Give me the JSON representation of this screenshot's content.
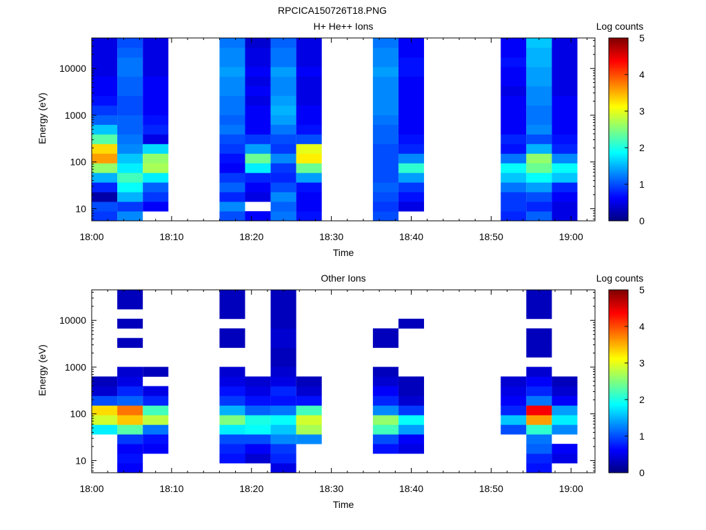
{
  "figure_title": "RPCICA150726T18.PNG",
  "colormap": [
    "#00007f",
    "#0000ff",
    "#007fff",
    "#00ffff",
    "#7fff7f",
    "#ffff00",
    "#ff7f00",
    "#ff0000",
    "#7f0000"
  ],
  "chart_data": [
    {
      "type": "heatmap",
      "title": "H+ He++ Ions",
      "xlabel": "Time",
      "ylabel": "Energy (eV)",
      "colorbar_label": "Log counts",
      "x_range": [
        "18:00",
        "19:03"
      ],
      "x_ticks": [
        "18:00",
        "18:10",
        "18:20",
        "18:30",
        "18:40",
        "18:50",
        "19:00"
      ],
      "y_scale": "log",
      "y_range": [
        5.5,
        45000
      ],
      "y_ticks": [
        "10",
        "100",
        "1000",
        "10000"
      ],
      "colorbar_range": [
        0,
        5
      ],
      "colorbar_ticks": [
        "0",
        "1",
        "2",
        "3",
        "4",
        "5"
      ],
      "time_columns": [
        {
          "start": "18:00:00",
          "end": "18:03:12",
          "profile": [
            0.9,
            1.0,
            0.2,
            0.8,
            1.5,
            2.6,
            3.6,
            3.3,
            2.3,
            1.6,
            1.1,
            0.9,
            0.7,
            0.6,
            0.6,
            0.5,
            0.5,
            0.5,
            0.5
          ]
        },
        {
          "start": "18:03:12",
          "end": "18:06:24",
          "profile": [
            1.3,
            0.9,
            1.5,
            1.9,
            2.2,
            1.8,
            1.6,
            1.3,
            1.2,
            1.1,
            1.1,
            1.0,
            1.0,
            1.1,
            1.1,
            1.2,
            1.2,
            1.1,
            1.0
          ]
        },
        {
          "start": "18:06:24",
          "end": "18:09:36",
          "profile": [
            null,
            0.6,
            0.9,
            1.1,
            1.8,
            2.7,
            2.6,
            1.7,
            0.5,
            0.8,
            0.7,
            0.6,
            0.6,
            0.6,
            0.6,
            0.5,
            0.5,
            0.5,
            0.5
          ]
        },
        {
          "start": "18:16:00",
          "end": "18:19:12",
          "profile": [
            1.0,
            1.3,
            0.8,
            1.1,
            0.9,
            0.6,
            0.7,
            0.9,
            1.0,
            1.2,
            1.1,
            1.2,
            1.2,
            1.3,
            1.3,
            1.4,
            1.3,
            1.3,
            1.2
          ]
        },
        {
          "start": "18:19:12",
          "end": "18:22:24",
          "profile": [
            0.6,
            null,
            0.5,
            0.6,
            0.8,
            1.8,
            2.4,
            1.4,
            0.9,
            0.6,
            0.6,
            0.6,
            0.5,
            0.6,
            0.5,
            0.6,
            0.5,
            0.5,
            0.4
          ]
        },
        {
          "start": "18:22:24",
          "end": "18:25:36",
          "profile": [
            1.2,
            1.1,
            1.3,
            1.0,
            0.8,
            0.9,
            1.3,
            0.9,
            1.0,
            1.2,
            1.4,
            1.5,
            1.4,
            1.3,
            1.3,
            1.4,
            1.2,
            1.2,
            1.1
          ]
        },
        {
          "start": "18:25:36",
          "end": "18:28:48",
          "profile": [
            0.7,
            0.6,
            0.6,
            0.7,
            1.4,
            2.4,
            3.2,
            3.0,
            1.0,
            0.7,
            0.6,
            0.6,
            0.5,
            0.5,
            0.5,
            0.6,
            0.5,
            0.5,
            0.5
          ]
        },
        {
          "start": "18:35:12",
          "end": "18:38:24",
          "profile": [
            1.0,
            0.9,
            1.0,
            1.1,
            1.0,
            1.0,
            1.0,
            1.0,
            1.1,
            1.1,
            1.2,
            1.3,
            1.3,
            1.3,
            1.3,
            1.4,
            1.3,
            1.3,
            1.2
          ]
        },
        {
          "start": "18:38:24",
          "end": "18:41:36",
          "profile": [
            null,
            0.5,
            0.7,
            0.9,
            1.4,
            2.1,
            1.3,
            0.8,
            0.7,
            0.6,
            0.6,
            0.6,
            0.6,
            0.6,
            0.6,
            0.7,
            0.7,
            0.6,
            0.6
          ]
        },
        {
          "start": "18:51:12",
          "end": "18:54:24",
          "profile": [
            0.8,
            0.9,
            0.9,
            1.2,
            1.6,
            1.9,
            1.2,
            0.7,
            0.8,
            0.6,
            0.6,
            0.6,
            0.6,
            0.5,
            0.6,
            0.6,
            0.7,
            0.6,
            0.6
          ]
        },
        {
          "start": "18:54:24",
          "end": "18:57:36",
          "profile": [
            1.1,
            0.8,
            1.0,
            1.4,
            1.9,
            2.4,
            2.6,
            1.5,
            1.0,
            1.3,
            1.2,
            1.2,
            1.3,
            1.3,
            1.4,
            1.4,
            1.5,
            1.5,
            1.6
          ]
        },
        {
          "start": "18:57:36",
          "end": "19:00:48",
          "profile": [
            0.5,
            0.5,
            0.6,
            0.8,
            1.6,
            1.9,
            1.3,
            0.8,
            0.7,
            0.6,
            0.6,
            0.6,
            0.6,
            0.5,
            0.5,
            0.5,
            0.5,
            0.5,
            0.5
          ]
        }
      ]
    },
    {
      "type": "heatmap",
      "title": "Other Ions",
      "xlabel": "Time",
      "ylabel": "Energy (eV)",
      "colorbar_label": "Log counts",
      "x_range": [
        "18:00",
        "19:03"
      ],
      "x_ticks": [
        "18:00",
        "18:10",
        "18:20",
        "18:30",
        "18:40",
        "18:50",
        "19:00"
      ],
      "y_scale": "log",
      "y_range": [
        5.5,
        45000
      ],
      "y_ticks": [
        "10",
        "100",
        "1000",
        "10000"
      ],
      "colorbar_range": [
        0,
        5
      ],
      "colorbar_ticks": [
        "0",
        "1",
        "2",
        "3",
        "4",
        "5"
      ],
      "time_columns": [
        {
          "start": "18:00:00",
          "end": "18:03:12",
          "profile": [
            null,
            null,
            null,
            null,
            1.8,
            2.9,
            3.3,
            1.0,
            0.4,
            0.3,
            null,
            null,
            null,
            null,
            null,
            null,
            null,
            null,
            null
          ]
        },
        {
          "start": "18:03:12",
          "end": "18:06:24",
          "profile": [
            0.6,
            0.7,
            0.6,
            0.9,
            2.3,
            3.4,
            3.8,
            1.1,
            0.8,
            0.5,
            0.4,
            null,
            null,
            0.3,
            null,
            0.3,
            null,
            0.3,
            0.3
          ]
        },
        {
          "start": "18:06:24",
          "end": "18:09:36",
          "profile": [
            null,
            null,
            0.6,
            0.7,
            1.2,
            2.8,
            2.2,
            0.8,
            0.5,
            null,
            0.3,
            null,
            null,
            null,
            null,
            null,
            null,
            null,
            null
          ]
        },
        {
          "start": "18:16:00",
          "end": "18:19:12",
          "profile": [
            null,
            0.7,
            0.8,
            1.0,
            1.8,
            2.5,
            1.5,
            0.9,
            0.7,
            0.5,
            0.4,
            null,
            null,
            0.3,
            0.3,
            null,
            0.3,
            0.3,
            0.3
          ]
        },
        {
          "start": "18:19:12",
          "end": "18:22:24",
          "profile": [
            null,
            0.4,
            0.6,
            1.0,
            1.9,
            2.0,
            1.1,
            0.7,
            0.5,
            0.4,
            null,
            null,
            null,
            null,
            null,
            null,
            null,
            null,
            null
          ]
        },
        {
          "start": "18:22:24",
          "end": "18:25:36",
          "profile": [
            0.5,
            0.8,
            0.9,
            1.3,
            1.6,
            1.9,
            1.2,
            0.7,
            0.8,
            0.5,
            0.4,
            0.3,
            0.3,
            0.4,
            0.4,
            0.3,
            0.3,
            0.3,
            0.3
          ]
        },
        {
          "start": "18:25:36",
          "end": "18:28:48",
          "profile": [
            null,
            null,
            null,
            1.3,
            2.7,
            2.9,
            2.2,
            0.7,
            0.4,
            0.3,
            null,
            null,
            null,
            null,
            null,
            null,
            null,
            null,
            null
          ]
        },
        {
          "start": "18:35:12",
          "end": "18:38:24",
          "profile": [
            null,
            null,
            0.7,
            1.0,
            2.2,
            2.6,
            1.3,
            0.8,
            0.6,
            0.4,
            0.3,
            null,
            null,
            0.3,
            0.3,
            null,
            null,
            null,
            null
          ]
        },
        {
          "start": "18:38:24",
          "end": "18:41:36",
          "profile": [
            null,
            null,
            0.5,
            0.6,
            1.4,
            1.9,
            0.9,
            0.4,
            0.3,
            0.3,
            null,
            null,
            null,
            null,
            null,
            0.3,
            null,
            null,
            null
          ]
        },
        {
          "start": "18:51:12",
          "end": "18:54:24",
          "profile": [
            null,
            null,
            null,
            null,
            1.0,
            1.6,
            0.8,
            0.6,
            0.5,
            0.4,
            null,
            null,
            null,
            null,
            null,
            null,
            null,
            null,
            null
          ]
        },
        {
          "start": "18:54:24",
          "end": "18:57:36",
          "profile": [
            0.7,
            0.8,
            1.1,
            1.2,
            2.1,
            3.6,
            4.4,
            1.2,
            0.8,
            0.6,
            0.4,
            null,
            0.3,
            0.3,
            0.3,
            null,
            0.3,
            0.3,
            0.3
          ]
        },
        {
          "start": "18:57:36",
          "end": "19:00:48",
          "profile": [
            null,
            0.5,
            0.6,
            null,
            1.3,
            1.8,
            1.4,
            0.6,
            0.4,
            0.3,
            null,
            null,
            null,
            null,
            null,
            null,
            null,
            null,
            null
          ]
        }
      ]
    }
  ]
}
